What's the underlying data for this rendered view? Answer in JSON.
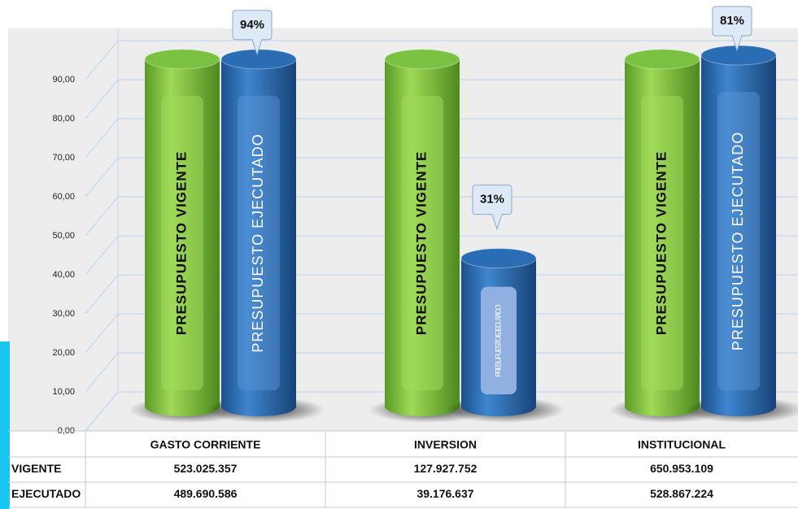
{
  "chart_data": {
    "type": "cylinder-bar",
    "categories": [
      "GASTO CORRIENTE",
      "INVERSION",
      "INSTITUCIONAL"
    ],
    "series": [
      {
        "name": "VIGENTE",
        "color": "#7cc242",
        "bar_label": "PRESUPUESTO VIGENTE",
        "values": [
          89,
          89,
          89
        ]
      },
      {
        "name": "EJECUTADO",
        "color": "#2a6db5",
        "bar_label": "PRESUPUESTO EJECUTADO",
        "values": [
          89,
          38,
          90
        ]
      }
    ],
    "annotations": [
      "94%",
      "31%",
      "81%"
    ],
    "ylim": [
      0,
      100
    ],
    "yticks": [
      {
        "value": 0,
        "label": "0,00"
      },
      {
        "value": 10,
        "label": "10,00"
      },
      {
        "value": 20,
        "label": "20,00"
      },
      {
        "value": 30,
        "label": "30,00"
      },
      {
        "value": 40,
        "label": "40,00"
      },
      {
        "value": 50,
        "label": "50,00"
      },
      {
        "value": 60,
        "label": "60,00"
      },
      {
        "value": 70,
        "label": "70,00"
      },
      {
        "value": 80,
        "label": "80,00"
      },
      {
        "value": 90,
        "label": "90,00"
      }
    ],
    "grid": true,
    "table": {
      "rows": [
        {
          "label": "VIGENTE",
          "cells": [
            "523.025.357",
            "127.927.752",
            "650.953.109"
          ]
        },
        {
          "label": "EJECUTADO",
          "cells": [
            "489.690.586",
            "39.176.637",
            "528.867.224"
          ]
        }
      ]
    }
  }
}
